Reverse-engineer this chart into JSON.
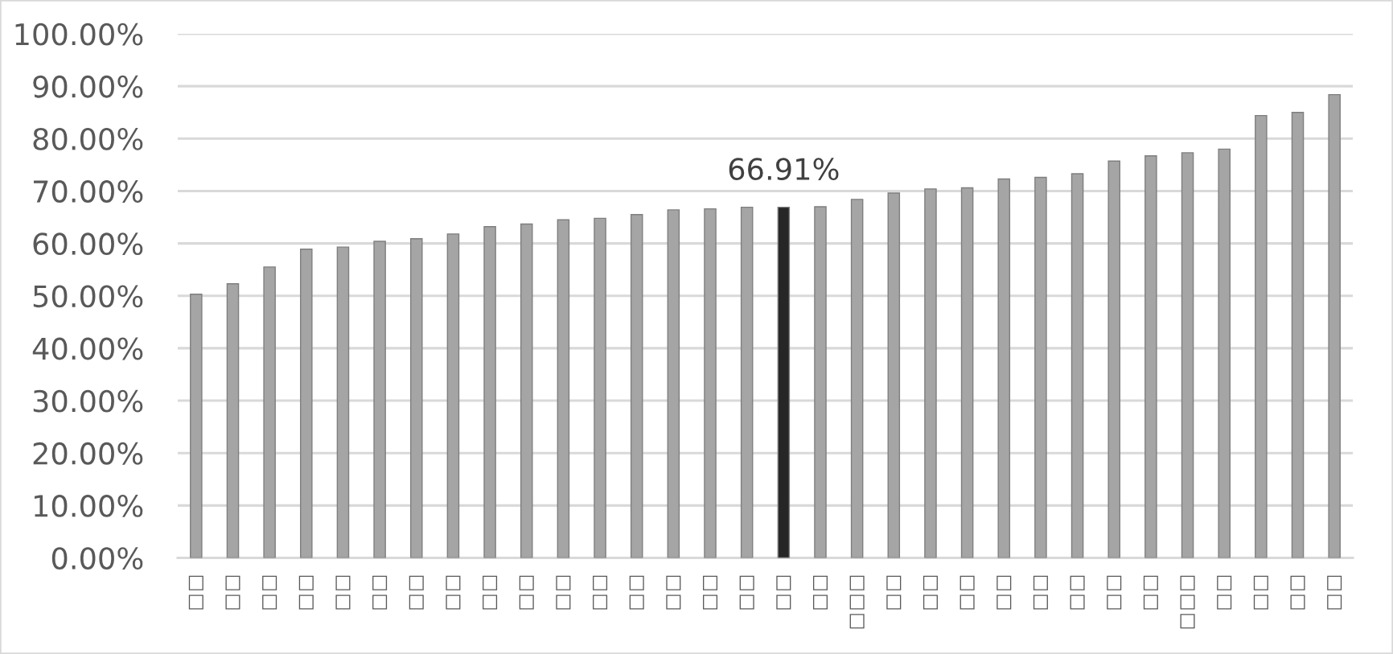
{
  "chart_data": {
    "type": "bar",
    "categories": [
      "□□",
      "□□",
      "□□",
      "□□",
      "□□",
      "□□",
      "□□",
      "□□",
      "□□",
      "□□",
      "□□",
      "□□",
      "□□",
      "□□",
      "□□",
      "□□",
      "□□",
      "□□",
      "□□□",
      "□□",
      "□□",
      "□□",
      "□□",
      "□□",
      "□□",
      "□□",
      "□□",
      "□□□",
      "□□",
      "□□",
      "□□",
      "□□"
    ],
    "values": [
      50.3,
      52.3,
      55.5,
      58.9,
      59.3,
      60.4,
      60.9,
      61.8,
      63.2,
      63.7,
      64.5,
      64.8,
      65.5,
      66.4,
      66.6,
      66.9,
      66.91,
      67.0,
      68.4,
      69.6,
      70.4,
      70.6,
      72.3,
      72.6,
      73.3,
      75.7,
      76.7,
      77.3,
      78.0,
      84.4,
      85.0,
      88.4
    ],
    "colors": [
      "#a5a5a5",
      "#a5a5a5",
      "#a5a5a5",
      "#a5a5a5",
      "#a5a5a5",
      "#a5a5a5",
      "#a5a5a5",
      "#a5a5a5",
      "#a5a5a5",
      "#a5a5a5",
      "#a5a5a5",
      "#a5a5a5",
      "#a5a5a5",
      "#a5a5a5",
      "#a5a5a5",
      "#a5a5a5",
      "#262626",
      "#a5a5a5",
      "#a5a5a5",
      "#a5a5a5",
      "#a5a5a5",
      "#a5a5a5",
      "#a5a5a5",
      "#a5a5a5",
      "#a5a5a5",
      "#a5a5a5",
      "#a5a5a5",
      "#a5a5a5",
      "#a5a5a5",
      "#a5a5a5",
      "#a5a5a5",
      "#a5a5a5"
    ],
    "value_labels": [
      null,
      null,
      null,
      null,
      null,
      null,
      null,
      null,
      null,
      null,
      null,
      null,
      null,
      null,
      null,
      null,
      "66.91%",
      null,
      null,
      null,
      null,
      null,
      null,
      null,
      null,
      null,
      null,
      null,
      null,
      null,
      null,
      null
    ],
    "ylim": [
      0,
      100
    ],
    "yticks": [
      {
        "value": 0,
        "label": "0.00%"
      },
      {
        "value": 10,
        "label": "10.00%"
      },
      {
        "value": 20,
        "label": "20.00%"
      },
      {
        "value": 30,
        "label": "30.00%"
      },
      {
        "value": 40,
        "label": "40.00%"
      },
      {
        "value": 50,
        "label": "50.00%"
      },
      {
        "value": 60,
        "label": "60.00%"
      },
      {
        "value": 70,
        "label": "70.00%"
      },
      {
        "value": 80,
        "label": "80.00%"
      },
      {
        "value": 90,
        "label": "90.00%"
      },
      {
        "value": 100,
        "label": "100.00%"
      }
    ],
    "grid": "y"
  }
}
